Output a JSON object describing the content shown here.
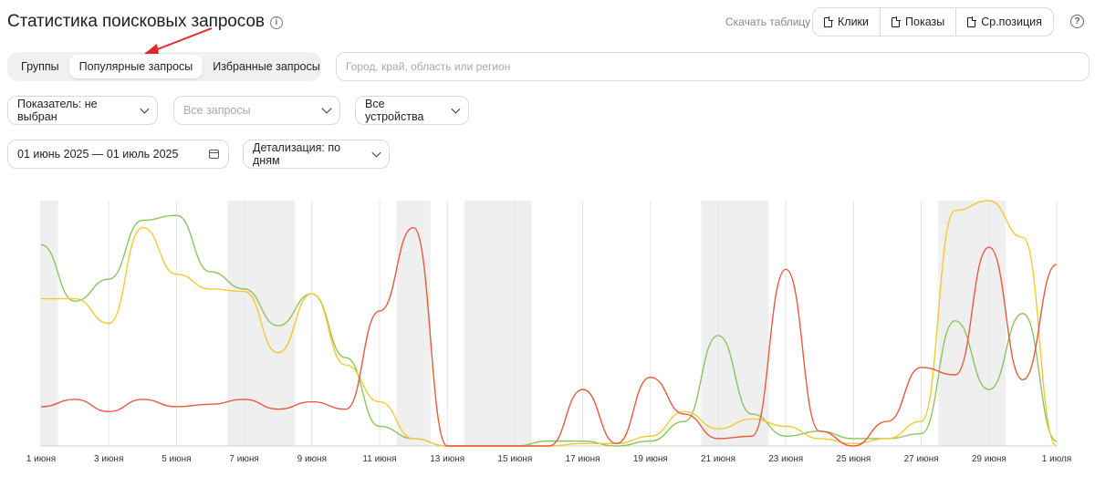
{
  "header": {
    "title": "Статистика поисковых запросов",
    "download_label": "Скачать таблицу",
    "download_buttons": [
      {
        "label": "Клики"
      },
      {
        "label": "Показы"
      },
      {
        "label": "Ср.позиция"
      }
    ]
  },
  "tabs": [
    {
      "label": "Группы",
      "active": false
    },
    {
      "label": "Популярные запросы",
      "active": true
    },
    {
      "label": "Избранные запросы",
      "active": false
    }
  ],
  "region": {
    "placeholder": "Город, край, область или регион",
    "value": ""
  },
  "filters": {
    "metric": "Показатель: не выбран",
    "queries_placeholder": "Все запросы",
    "devices": "Все устройства",
    "date_range": "01 июнь 2025 — 01 июль 2025",
    "detail": "Детализация: по дням"
  },
  "colors": {
    "arrow": "#e32626",
    "green": "#8cc461",
    "yellow": "#f5c832",
    "red": "#e85a3f",
    "weekend": "#efefef",
    "grid": "#e3e3e3"
  },
  "chart_data": {
    "type": "line",
    "x": [
      "1 июня",
      "2 июня",
      "3 июня",
      "4 июня",
      "5 июня",
      "6 июня",
      "7 июня",
      "8 июня",
      "9 июня",
      "10 июня",
      "11 июня",
      "12 июня",
      "13 июня",
      "14 июня",
      "15 июня",
      "16 июня",
      "17 июня",
      "18 июня",
      "19 июня",
      "20 июня",
      "21 июня",
      "22 июня",
      "23 июня",
      "24 июня",
      "25 июня",
      "26 июня",
      "27 июня",
      "28 июня",
      "29 июня",
      "30 июня",
      "1 июля"
    ],
    "tick_labels": [
      "1 июня",
      "3 июня",
      "5 июня",
      "7 июня",
      "9 июня",
      "11 июня",
      "13 июня",
      "15 июня",
      "17 июня",
      "19 июня",
      "21 июня",
      "23 июня",
      "25 июня",
      "27 июня",
      "29 июня",
      "1 июля"
    ],
    "weekend_bands": [
      [
        "1 июня",
        "1 июня"
      ],
      [
        "7 июня",
        "8 июня"
      ],
      [
        "12 июня",
        "12 июня"
      ],
      [
        "14 июня",
        "15 июня"
      ],
      [
        "21 июня",
        "22 июня"
      ],
      [
        "28 июня",
        "29 июня"
      ]
    ],
    "ylim": [
      0,
      100
    ],
    "grid": true,
    "series": [
      {
        "color": "#8cc461",
        "values": [
          82,
          59,
          68,
          92,
          94,
          71,
          64,
          49,
          62,
          36,
          8,
          3,
          0,
          0,
          0,
          2,
          2,
          0,
          2,
          10,
          45,
          13,
          4,
          6,
          3,
          3,
          5,
          51,
          23,
          54,
          2
        ]
      },
      {
        "color": "#f5c832",
        "values": [
          60,
          60,
          50,
          89,
          70,
          64,
          63,
          38,
          62,
          33,
          18,
          3,
          0,
          0,
          0,
          0,
          1,
          1,
          4,
          14,
          7,
          11,
          8,
          3,
          1,
          3,
          10,
          96,
          100,
          85,
          0
        ]
      },
      {
        "color": "#e85a3f",
        "values": [
          16,
          19,
          14,
          19,
          16,
          17,
          19,
          15,
          18,
          15,
          55,
          89,
          0,
          0,
          0,
          0,
          23,
          1,
          28,
          13,
          3,
          4,
          72,
          6,
          0,
          10,
          32,
          29,
          81,
          27,
          74
        ]
      }
    ]
  }
}
